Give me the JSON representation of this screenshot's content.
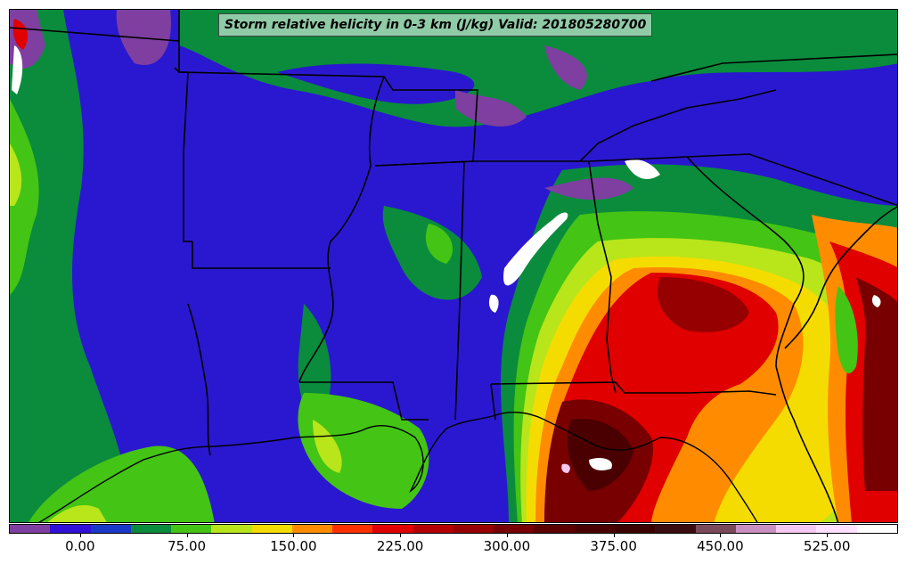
{
  "title": "Storm relative helicity in 0-3 km (J/kg) Valid: 201805280700",
  "colorbar": {
    "colors": [
      "#7e3fa0",
      "#3010d8",
      "#1a38c8",
      "#0a8c3c",
      "#44c414",
      "#b8e61a",
      "#f5dc00",
      "#ff8c00",
      "#ff3000",
      "#e00000",
      "#b40000",
      "#960000",
      "#780000",
      "#5c0000",
      "#4a0000",
      "#3c0000",
      "#3a0e10",
      "#7a4a5a",
      "#c890c0",
      "#f4c8f0",
      "#ffe0ff",
      "#ffffff"
    ],
    "tick_labels": [
      "0.00",
      "75.00",
      "150.00",
      "225.00",
      "300.00",
      "375.00",
      "450.00",
      "525.00"
    ],
    "tick_values": [
      0,
      75,
      150,
      225,
      300,
      375,
      450,
      525
    ],
    "min": -50,
    "max": 575
  },
  "map": {
    "background_color": "#2f14d4",
    "boundary_color": "#000000"
  }
}
